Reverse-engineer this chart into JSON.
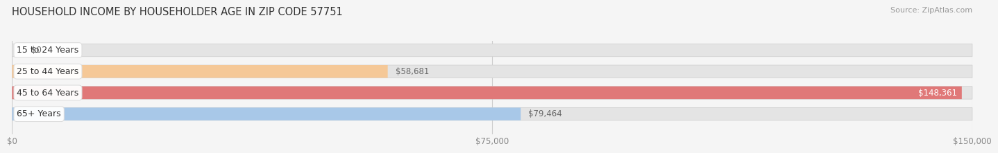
{
  "title": "HOUSEHOLD INCOME BY HOUSEHOLDER AGE IN ZIP CODE 57751",
  "source": "Source: ZipAtlas.com",
  "categories": [
    "15 to 24 Years",
    "25 to 44 Years",
    "45 to 64 Years",
    "65+ Years"
  ],
  "values": [
    0,
    58681,
    148361,
    79464
  ],
  "bar_colors": [
    "#f4a0a8",
    "#f5c897",
    "#e07878",
    "#a8c8e8"
  ],
  "value_labels": [
    "$0",
    "$58,681",
    "$148,361",
    "$79,464"
  ],
  "xlim": [
    0,
    150000
  ],
  "xticks": [
    0,
    75000,
    150000
  ],
  "xtick_labels": [
    "$0",
    "$75,000",
    "$150,000"
  ],
  "background_color": "#f5f5f5",
  "bar_bg_color": "#e4e4e4",
  "title_fontsize": 10.5,
  "source_fontsize": 8,
  "label_fontsize": 9,
  "value_fontsize": 8.5,
  "tick_fontsize": 8.5,
  "bar_height": 0.6,
  "label_bg_color": "#ffffff",
  "label_border_color": "#dddddd"
}
